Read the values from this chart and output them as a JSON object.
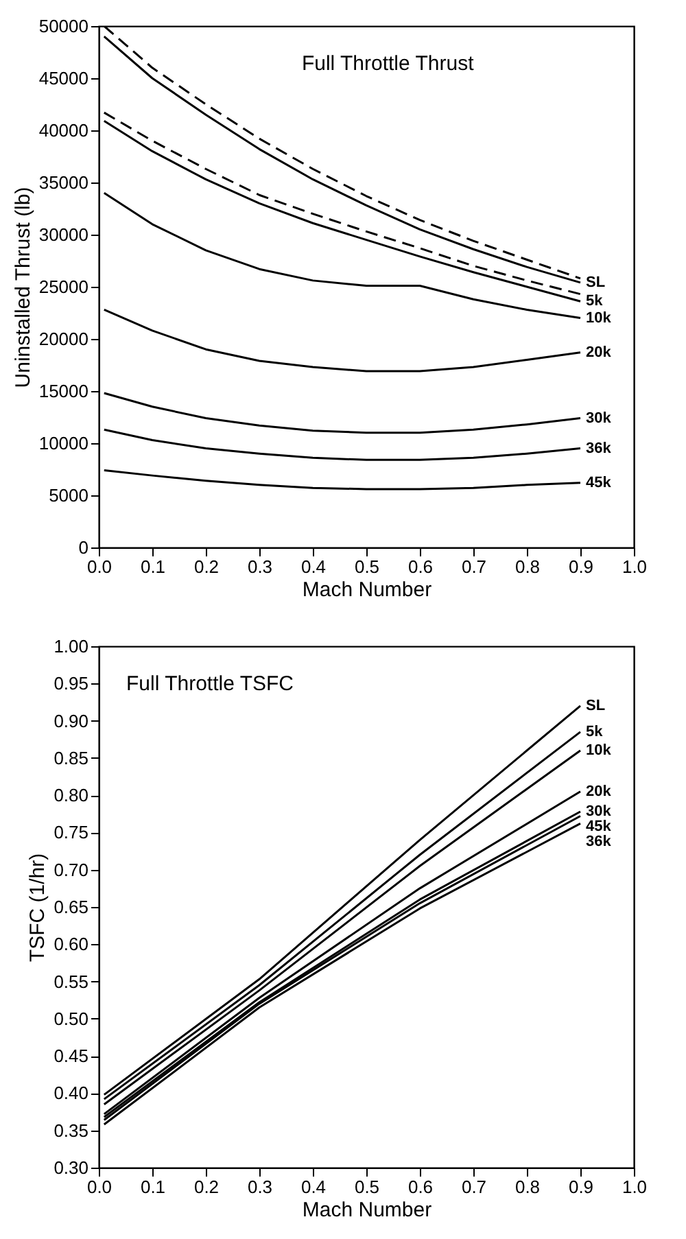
{
  "chart_data": [
    {
      "type": "line",
      "title": "Full Throttle Thrust",
      "xlabel": "Mach Number",
      "ylabel": "Uninstalled Thrust (lb)",
      "xlim": [
        0,
        1
      ],
      "xticks": [
        {
          "value": 0,
          "label": "0.0"
        },
        {
          "value": 0.1,
          "label": "0.1"
        },
        {
          "value": 0.2,
          "label": "0.2"
        },
        {
          "value": 0.3,
          "label": "0.3"
        },
        {
          "value": 0.4,
          "label": "0.4"
        },
        {
          "value": 0.5,
          "label": "0.5"
        },
        {
          "value": 0.6,
          "label": "0.6"
        },
        {
          "value": 0.7,
          "label": "0.7"
        },
        {
          "value": 0.8,
          "label": "0.8"
        },
        {
          "value": 0.9,
          "label": "0.9"
        },
        {
          "value": 1,
          "label": "1.0"
        }
      ],
      "ylim": [
        0,
        50000
      ],
      "yticks": [
        0,
        5000,
        10000,
        15000,
        20000,
        25000,
        30000,
        35000,
        40000,
        45000,
        50000
      ],
      "legend": false,
      "line_style": "solid",
      "x": [
        0.01,
        0.1,
        0.2,
        0.3,
        0.4,
        0.5,
        0.6,
        0.7,
        0.8,
        0.9
      ],
      "series": [
        {
          "color": "#000000",
          "line_style": "dashed",
          "values": [
            50000,
            46000,
            42500,
            39200,
            36300,
            33700,
            31400,
            29400,
            27600,
            25800
          ]
        },
        {
          "name": "SL",
          "color": "#000000",
          "values": [
            49000,
            45000,
            41500,
            38200,
            35300,
            32800,
            30500,
            28600,
            26900,
            25400
          ]
        },
        {
          "color": "#000000",
          "line_style": "dashed",
          "values": [
            41700,
            39000,
            36300,
            33800,
            32000,
            30300,
            28700,
            27000,
            25600,
            24300
          ]
        },
        {
          "name": "5k",
          "color": "#000000",
          "values": [
            40900,
            38000,
            35300,
            33000,
            31100,
            29500,
            27900,
            26400,
            25000,
            23600
          ]
        },
        {
          "name": "10k",
          "color": "#000000",
          "values": [
            34000,
            31000,
            28500,
            26700,
            25600,
            25100,
            25100,
            23800,
            22800,
            22000
          ]
        },
        {
          "name": "20k",
          "color": "#000000",
          "values": [
            22800,
            20800,
            19000,
            17900,
            17300,
            16900,
            16900,
            17300,
            18000,
            18700
          ]
        },
        {
          "name": "30k",
          "color": "#000000",
          "values": [
            14800,
            13500,
            12400,
            11700,
            11200,
            11000,
            11000,
            11300,
            11800,
            12400
          ]
        },
        {
          "name": "36k",
          "color": "#000000",
          "values": [
            11300,
            10300,
            9500,
            9000,
            8600,
            8400,
            8400,
            8600,
            9000,
            9500
          ]
        },
        {
          "name": "45k",
          "color": "#000000",
          "values": [
            7400,
            6900,
            6400,
            6000,
            5700,
            5600,
            5600,
            5700,
            6000,
            6200
          ]
        }
      ]
    },
    {
      "type": "line",
      "title": "Full Throttle TSFC",
      "xlabel": "Mach Number",
      "ylabel": "TSFC (1/hr)",
      "xlim": [
        0,
        1
      ],
      "xticks": [
        {
          "value": 0,
          "label": "0.0"
        },
        {
          "value": 0.1,
          "label": "0.1"
        },
        {
          "value": 0.2,
          "label": "0.2"
        },
        {
          "value": 0.3,
          "label": "0.3"
        },
        {
          "value": 0.4,
          "label": "0.4"
        },
        {
          "value": 0.5,
          "label": "0.5"
        },
        {
          "value": 0.6,
          "label": "0.6"
        },
        {
          "value": 0.7,
          "label": "0.7"
        },
        {
          "value": 0.8,
          "label": "0.8"
        },
        {
          "value": 0.9,
          "label": "0.9"
        },
        {
          "value": 1,
          "label": "1.0"
        }
      ],
      "ylim": [
        0.3,
        1
      ],
      "yticks": [
        {
          "value": 0.3,
          "label": "0.30"
        },
        {
          "value": 0.35,
          "label": "0.35"
        },
        {
          "value": 0.4,
          "label": "0.40"
        },
        {
          "value": 0.45,
          "label": "0.45"
        },
        {
          "value": 0.5,
          "label": "0.50"
        },
        {
          "value": 0.55,
          "label": "0.55"
        },
        {
          "value": 0.6,
          "label": "0.60"
        },
        {
          "value": 0.65,
          "label": "0.65"
        },
        {
          "value": 0.7,
          "label": "0.70"
        },
        {
          "value": 0.75,
          "label": "0.75"
        },
        {
          "value": 0.8,
          "label": "0.80"
        },
        {
          "value": 0.85,
          "label": "0.85"
        },
        {
          "value": 0.9,
          "label": "0.90"
        },
        {
          "value": 0.95,
          "label": "0.95"
        },
        {
          "value": 1,
          "label": "1.00"
        }
      ],
      "legend": false,
      "line_style": "solid",
      "x": [
        0.01,
        0.3,
        0.6,
        0.9
      ],
      "series": [
        {
          "name": "SL",
          "color": "#000000",
          "values": [
            0.398,
            0.553,
            0.74,
            0.92
          ]
        },
        {
          "name": "5k",
          "color": "#000000",
          "values": [
            0.392,
            0.545,
            0.72,
            0.885
          ]
        },
        {
          "name": "10k",
          "color": "#000000",
          "values": [
            0.385,
            0.538,
            0.705,
            0.86
          ]
        },
        {
          "name": "20k",
          "color": "#000000",
          "values": [
            0.372,
            0.528,
            0.675,
            0.805
          ]
        },
        {
          "name": "30k",
          "color": "#000000",
          "values": [
            0.368,
            0.522,
            0.66,
            0.778
          ]
        },
        {
          "name": "45k",
          "color": "#000000",
          "values": [
            0.364,
            0.52,
            0.655,
            0.772
          ]
        },
        {
          "name": "36k",
          "color": "#000000",
          "values": [
            0.358,
            0.515,
            0.648,
            0.762
          ]
        }
      ]
    }
  ]
}
